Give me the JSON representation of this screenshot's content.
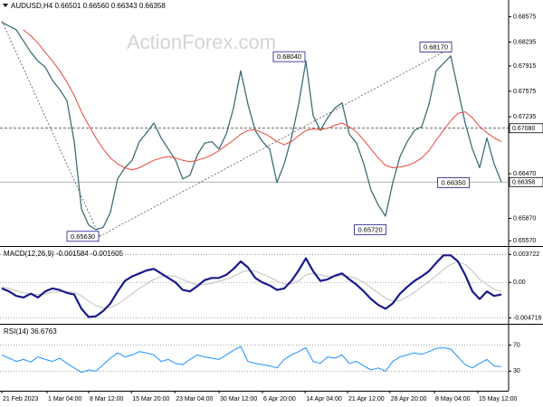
{
  "chart_data": [
    {
      "type": "line",
      "title": "AUDUSD,H4  0.66501 0.66560 0.66343 0.66358",
      "watermark": "ActionForex.com",
      "x": [
        0,
        1,
        2,
        3,
        4,
        5,
        6,
        7,
        8,
        9,
        10,
        11,
        12,
        13,
        14,
        15,
        16,
        17,
        18,
        19,
        20,
        21,
        22,
        23,
        24,
        25,
        26,
        27,
        28,
        29,
        30,
        31,
        32,
        33,
        34,
        35,
        36,
        37,
        38,
        39,
        40,
        41,
        42,
        43,
        44,
        45,
        46,
        47,
        48,
        49,
        50,
        51,
        52,
        53,
        54,
        55,
        56,
        57,
        58,
        59,
        60,
        61,
        62,
        63,
        64,
        65,
        66,
        67,
        68,
        69
      ],
      "xlim": [
        -0.25,
        70
      ],
      "ylim": [
        0.655,
        0.688
      ],
      "grid": false,
      "yticks": [
        0.68575,
        0.68235,
        0.67915,
        0.67575,
        0.67235,
        {
          "value": 0.6647,
          "label": "0.66470"
        },
        {
          "value": 0.6587,
          "label": "0.65870"
        },
        {
          "value": 0.6557,
          "label": "0.65570"
        }
      ],
      "series": [
        {
          "color": "#3e6e76",
          "line_width": 1.3,
          "values": [
            0.685,
            0.6845,
            0.684,
            0.6825,
            0.681,
            0.6798,
            0.679,
            0.6772,
            0.676,
            0.6745,
            0.669,
            0.66,
            0.6578,
            0.6572,
            0.6575,
            0.6595,
            0.664,
            0.6655,
            0.6665,
            0.669,
            0.6702,
            0.6715,
            0.6695,
            0.668,
            0.6665,
            0.664,
            0.6645,
            0.6672,
            0.6688,
            0.669,
            0.668,
            0.67,
            0.6735,
            0.6785,
            0.674,
            0.6705,
            0.669,
            0.668,
            0.6635,
            0.666,
            0.6695,
            0.674,
            0.6798,
            0.6725,
            0.6705,
            0.6722,
            0.6735,
            0.6742,
            0.67,
            0.6688,
            0.666,
            0.6625,
            0.6605,
            0.659,
            0.6635,
            0.667,
            0.669,
            0.6705,
            0.671,
            0.674,
            0.6785,
            0.6795,
            0.6805,
            0.676,
            0.6715,
            0.668,
            0.6655,
            0.6695,
            0.666,
            0.6636
          ]
        },
        {
          "color": "#e8473c",
          "line_width": 1,
          "values": [
            null,
            null,
            null,
            0.684,
            0.6832,
            0.6822,
            0.681,
            0.6798,
            0.6785,
            0.677,
            0.6752,
            0.673,
            0.6712,
            0.6695,
            0.668,
            0.6668,
            0.666,
            0.6655,
            0.6652,
            0.6655,
            0.666,
            0.6665,
            0.6668,
            0.667,
            0.6668,
            0.6665,
            0.6663,
            0.6665,
            0.6668,
            0.6672,
            0.6678,
            0.6685,
            0.6692,
            0.67,
            0.6705,
            0.6706,
            0.6702,
            0.6697,
            0.669,
            0.6686,
            0.669,
            0.6698,
            0.6705,
            0.6707,
            0.6706,
            0.6708,
            0.6712,
            0.6715,
            0.671,
            0.6703,
            0.6692,
            0.668,
            0.6668,
            0.6658,
            0.6655,
            0.6656,
            0.6658,
            0.6662,
            0.6668,
            0.6678,
            0.6692,
            0.6705,
            0.6718,
            0.6728,
            0.673,
            0.6722,
            0.671,
            0.6702,
            0.6695,
            0.669
          ]
        }
      ],
      "trendlines": [
        {
          "x": [
            0,
            13.5
          ],
          "values": [
            0.6852,
            0.6563
          ]
        },
        {
          "x": [
            13.5,
            62.25
          ],
          "values": [
            0.6563,
            0.6817
          ]
        }
      ],
      "hlines": [
        {
          "value": 0.6708,
          "label": "0.67080",
          "style": "dashed"
        },
        {
          "value": 0.66358,
          "label": "0.66358",
          "style": "solid"
        }
      ],
      "annotations": [
        {
          "x": 13.5,
          "value": 0.6563,
          "label": "0.65630"
        },
        {
          "x": 42,
          "value": 0.6804,
          "label": "0.68040"
        },
        {
          "x": 53.2,
          "value": 0.6572,
          "label": "0.65720"
        },
        {
          "x": 62.25,
          "value": 0.6817,
          "label": "0.68170"
        },
        {
          "x": 64.7,
          "value": 0.6635,
          "label": "0.66350"
        }
      ]
    },
    {
      "type": "line",
      "title": "MACD(12,26,9) -0.001584 -0.001605",
      "x": [
        0,
        1,
        2,
        3,
        4,
        5,
        6,
        7,
        8,
        9,
        10,
        11,
        12,
        13,
        14,
        15,
        16,
        17,
        18,
        19,
        20,
        21,
        22,
        23,
        24,
        25,
        26,
        27,
        28,
        29,
        30,
        31,
        32,
        33,
        34,
        35,
        36,
        37,
        38,
        39,
        40,
        41,
        42,
        43,
        44,
        45,
        46,
        47,
        48,
        49,
        50,
        51,
        52,
        53,
        54,
        55,
        56,
        57,
        58,
        59,
        60,
        61,
        62,
        63,
        64,
        65,
        66,
        67,
        68,
        69
      ],
      "xlim": [
        -0.25,
        70
      ],
      "ylim": [
        -0.0055,
        0.0046
      ],
      "grid": true,
      "yticks": [
        0.003722,
        {
          "value": 0,
          "label": "0.00"
        },
        -0.004716
      ],
      "series": [
        {
          "color": "#c0c0c0",
          "line_width": 1,
          "values": [
            -0.0006,
            -0.0008,
            -0.0011,
            -0.0014,
            -0.0015,
            -0.0016,
            -0.0015,
            -0.0013,
            -0.0012,
            -0.0012,
            -0.0013,
            -0.0018,
            -0.0025,
            -0.0031,
            -0.0034,
            -0.0033,
            -0.0029,
            -0.0022,
            -0.0015,
            -0.0008,
            -0.0002,
            0.0004,
            0.0008,
            0.0009,
            0.0008,
            0.0004,
            0.0,
            -0.0003,
            -0.0003,
            -0.0001,
            0.0002,
            0.0004,
            0.0008,
            0.0013,
            0.0016,
            0.0015,
            0.0011,
            0.0007,
            0.0002,
            -0.0002,
            -0.0002,
            0.0002,
            0.001,
            0.0012,
            0.001,
            0.0008,
            0.0008,
            0.0009,
            0.0008,
            0.0005,
            0.0,
            -0.0007,
            -0.0014,
            -0.0021,
            -0.0025,
            -0.0024,
            -0.0019,
            -0.0013,
            -0.0006,
            0.0001,
            0.0009,
            0.0017,
            0.0024,
            0.0027,
            0.0024,
            0.0015,
            0.0004,
            -0.0003,
            -0.0009,
            -0.0012
          ]
        },
        {
          "color": "#1a1a8c",
          "line_width": 2.2,
          "values": [
            -0.0008,
            -0.0012,
            -0.0018,
            -0.002,
            -0.0015,
            -0.002,
            -0.0012,
            -0.0008,
            -0.001,
            -0.0014,
            -0.0016,
            -0.0035,
            -0.0046,
            -0.0045,
            -0.0038,
            -0.0028,
            -0.0012,
            0.0002,
            0.0008,
            0.0012,
            0.0016,
            0.0018,
            0.0012,
            0.0006,
            0.0,
            -0.001,
            -0.0012,
            -0.0005,
            0.0003,
            0.0006,
            0.0006,
            0.001,
            0.0018,
            0.0028,
            0.002,
            0.0006,
            0.0,
            -0.0004,
            -0.001,
            -0.0008,
            0.0002,
            0.0016,
            0.0032,
            0.0015,
            0.0002,
            0.0004,
            0.0009,
            0.0012,
            0.0004,
            -0.0003,
            -0.0012,
            -0.0022,
            -0.003,
            -0.0035,
            -0.0028,
            -0.0015,
            -0.0006,
            0.0002,
            0.0008,
            0.0015,
            0.0026,
            0.0036,
            0.0036,
            0.0028,
            0.001,
            -0.0012,
            -0.0022,
            -0.0012,
            -0.0018,
            -0.0016
          ]
        }
      ]
    },
    {
      "type": "line",
      "title": "RSI(14) 36.6763",
      "x": [
        0,
        1,
        2,
        3,
        4,
        5,
        6,
        7,
        8,
        9,
        10,
        11,
        12,
        13,
        14,
        15,
        16,
        17,
        18,
        19,
        20,
        21,
        22,
        23,
        24,
        25,
        26,
        27,
        28,
        29,
        30,
        31,
        32,
        33,
        34,
        35,
        36,
        37,
        38,
        39,
        40,
        41,
        42,
        43,
        44,
        45,
        46,
        47,
        48,
        49,
        50,
        51,
        52,
        53,
        54,
        55,
        56,
        57,
        58,
        59,
        60,
        61,
        62,
        63,
        64,
        65,
        66,
        67,
        68,
        69
      ],
      "xlim": [
        -0.25,
        70
      ],
      "ylim": [
        0,
        100
      ],
      "grid": true,
      "yticks": [
        70,
        30
      ],
      "xticks": [
        {
          "value": 0,
          "label": "21 Feb 2023"
        },
        {
          "value": 6.25,
          "label": "1 Mar 04:00"
        },
        {
          "value": 12,
          "label": "8 Mar 12:00"
        },
        {
          "value": 17.9,
          "label": "15 Mar 20:00"
        },
        {
          "value": 23.9,
          "label": "23 Mar 04:00"
        },
        {
          "value": 30,
          "label": "30 Mar 12:00"
        },
        {
          "value": 36,
          "label": "6 Apr 20:00"
        },
        {
          "value": 41.9,
          "label": "14 Apr 04:00"
        },
        {
          "value": 47.75,
          "label": "21 Apr 12:00"
        },
        {
          "value": 53.6,
          "label": "28 Apr 20:00"
        },
        {
          "value": 59.75,
          "label": "8 May 04:00"
        },
        {
          "value": 65.75,
          "label": "15 May 12:00"
        }
      ],
      "series": [
        {
          "color": "#1e90ff",
          "line_width": 1,
          "values": [
            55,
            50,
            45,
            48,
            44,
            52,
            48,
            45,
            50,
            42,
            35,
            28,
            32,
            30,
            40,
            50,
            58,
            52,
            55,
            60,
            58,
            55,
            45,
            48,
            42,
            40,
            48,
            55,
            52,
            50,
            48,
            55,
            62,
            68,
            45,
            42,
            40,
            38,
            35,
            48,
            55,
            60,
            66,
            45,
            42,
            52,
            50,
            55,
            42,
            45,
            38,
            32,
            35,
            30,
            45,
            52,
            55,
            58,
            56,
            60,
            65,
            66,
            64,
            52,
            40,
            35,
            42,
            48,
            38,
            37
          ]
        }
      ]
    }
  ]
}
